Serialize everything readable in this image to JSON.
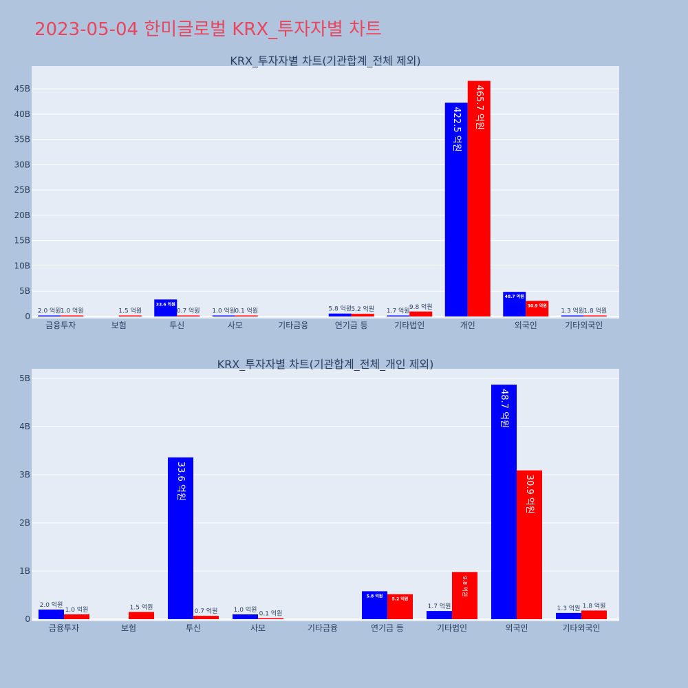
{
  "page": {
    "title": "2023-05-04 한미글로벌 KRX_투자자별 차트"
  },
  "colors": {
    "background": "#b0c4de",
    "plot_background": "#e5ecf6",
    "title": "#e8455e",
    "buy": "#0000ff",
    "sell": "#ff0000",
    "text": "#2a3f5f",
    "grid": "#ffffff"
  },
  "chart_data": [
    {
      "type": "bar",
      "title": "KRX_투자자별 차트(기관합계_전체 제외)",
      "categories": [
        "금융투자",
        "보험",
        "투신",
        "사모",
        "기타금융",
        "연기금 등",
        "기타법인",
        "개인",
        "외국인",
        "기타외국인"
      ],
      "ylim": [
        0,
        49.5
      ],
      "yticks": [
        0,
        5,
        10,
        15,
        20,
        25,
        30,
        35,
        40,
        45
      ],
      "ytick_labels": [
        "0",
        "5B",
        "10B",
        "15B",
        "20B",
        "25B",
        "30B",
        "35B",
        "40B",
        "45B"
      ],
      "grid": true,
      "series": [
        {
          "color": "#0000ff",
          "values": [
            0.2,
            null,
            3.36,
            0.1,
            null,
            0.58,
            0.17,
            42.25,
            4.87,
            0.13
          ],
          "labels": [
            "2.0 억원",
            "",
            "33.6 억원",
            "1.0 억원",
            "",
            "5.8 억원",
            "1.7 억원",
            "422.5 억원",
            "48.7 억원",
            "1.3 억원"
          ]
        },
        {
          "color": "#ff0000",
          "values": [
            0.1,
            0.15,
            0.07,
            0.01,
            null,
            0.52,
            0.98,
            46.57,
            3.09,
            0.18
          ],
          "labels": [
            "1.0 억원",
            "1.5 억원",
            "0.7 억원",
            "0.1 억원",
            "",
            "5.2 억원",
            "9.8 억원",
            "465.7 억원",
            "30.9 억원",
            "1.8 억원"
          ]
        }
      ]
    },
    {
      "type": "bar",
      "title": "KRX_투자자별 차트(기관합계_전체_개인 제외)",
      "categories": [
        "금융투자",
        "보험",
        "투신",
        "사모",
        "기타금융",
        "연기금 등",
        "기타법인",
        "외국인",
        "기타외국인"
      ],
      "ylim": [
        0,
        5.2
      ],
      "yticks": [
        0,
        1,
        2,
        3,
        4,
        5
      ],
      "ytick_labels": [
        "0",
        "1B",
        "2B",
        "3B",
        "4B",
        "5B"
      ],
      "grid": true,
      "series": [
        {
          "color": "#0000ff",
          "values": [
            0.2,
            null,
            3.36,
            0.1,
            null,
            0.58,
            0.17,
            4.87,
            0.13
          ],
          "labels": [
            "2.0 억원",
            "",
            "33.6 억원",
            "1.0 억원",
            "",
            "5.8 억원",
            "1.7 억원",
            "48.7 억원",
            "1.3 억원"
          ]
        },
        {
          "color": "#ff0000",
          "values": [
            0.1,
            0.15,
            0.07,
            0.01,
            null,
            0.52,
            0.98,
            3.09,
            0.18
          ],
          "labels": [
            "1.0 억원",
            "1.5 억원",
            "0.7 억원",
            "0.1 억원",
            "",
            "5.2 억원",
            "9.8 억원",
            "30.9 억원",
            "1.8 억원"
          ]
        }
      ]
    }
  ]
}
